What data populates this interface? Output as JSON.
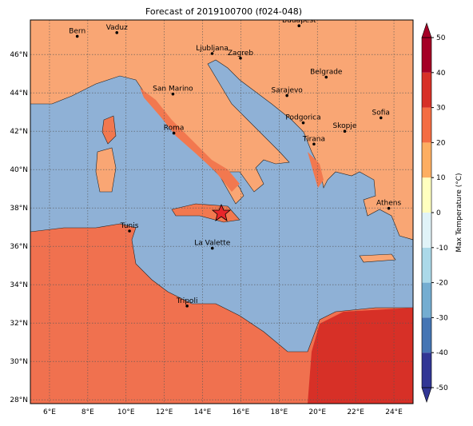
{
  "title": "Forecast of 2019100700 (f024-048)",
  "extent": {
    "lon": [
      5,
      25
    ],
    "lat": [
      27.8,
      47.8
    ]
  },
  "lon_ticks": [
    {
      "value": 6,
      "label": "6°E"
    },
    {
      "value": 8,
      "label": "8°E"
    },
    {
      "value": 10,
      "label": "10°E"
    },
    {
      "value": 12,
      "label": "12°E"
    },
    {
      "value": 14,
      "label": "14°E"
    },
    {
      "value": 16,
      "label": "16°E"
    },
    {
      "value": 18,
      "label": "18°E"
    },
    {
      "value": 20,
      "label": "20°E"
    },
    {
      "value": 22,
      "label": "22°E"
    },
    {
      "value": 24,
      "label": "24°E"
    }
  ],
  "lat_ticks": [
    {
      "value": 28,
      "label": "28°N"
    },
    {
      "value": 30,
      "label": "30°N"
    },
    {
      "value": 32,
      "label": "32°N"
    },
    {
      "value": 34,
      "label": "34°N"
    },
    {
      "value": 36,
      "label": "36°N"
    },
    {
      "value": 38,
      "label": "38°N"
    },
    {
      "value": 40,
      "label": "40°N"
    },
    {
      "value": 42,
      "label": "42°N"
    },
    {
      "value": 44,
      "label": "44°N"
    },
    {
      "value": 46,
      "label": "46°N"
    }
  ],
  "cities": [
    {
      "name": "Bern",
      "lon": 7.45,
      "lat": 46.95
    },
    {
      "name": "Vaduz",
      "lon": 9.52,
      "lat": 47.14
    },
    {
      "name": "Budapest",
      "lon": 19.04,
      "lat": 47.5
    },
    {
      "name": "Ljubljana",
      "lon": 14.5,
      "lat": 46.05
    },
    {
      "name": "Zagreb",
      "lon": 15.98,
      "lat": 45.81
    },
    {
      "name": "Belgrade",
      "lon": 20.46,
      "lat": 44.82
    },
    {
      "name": "San Marino",
      "lon": 12.45,
      "lat": 43.94
    },
    {
      "name": "Sarajevo",
      "lon": 18.41,
      "lat": 43.86
    },
    {
      "name": "Sofia",
      "lon": 23.32,
      "lat": 42.7
    },
    {
      "name": "Podgorica",
      "lon": 19.26,
      "lat": 42.44
    },
    {
      "name": "Skopje",
      "lon": 21.43,
      "lat": 42.0
    },
    {
      "name": "Roma",
      "lon": 12.5,
      "lat": 41.9
    },
    {
      "name": "Tirana",
      "lon": 19.82,
      "lat": 41.33
    },
    {
      "name": "Athens",
      "lon": 23.73,
      "lat": 37.98
    },
    {
      "name": "Tunis",
      "lon": 10.18,
      "lat": 36.8
    },
    {
      "name": "La Valette",
      "lon": 14.51,
      "lat": 35.9
    },
    {
      "name": "Tripoli",
      "lon": 13.19,
      "lat": 32.89
    }
  ],
  "colorbar": {
    "label": "Max Temperature (°C)",
    "lim": [
      -50,
      50
    ],
    "ticks": [
      -50,
      -40,
      -30,
      -20,
      -10,
      0,
      10,
      20,
      30,
      40,
      50
    ],
    "colors": [
      "#313695",
      "#4575b4",
      "#74add1",
      "#abd9e9",
      "#e0f3f8",
      "#ffffbf",
      "#fdae61",
      "#f46d43",
      "#d73027",
      "#a50026"
    ]
  }
}
